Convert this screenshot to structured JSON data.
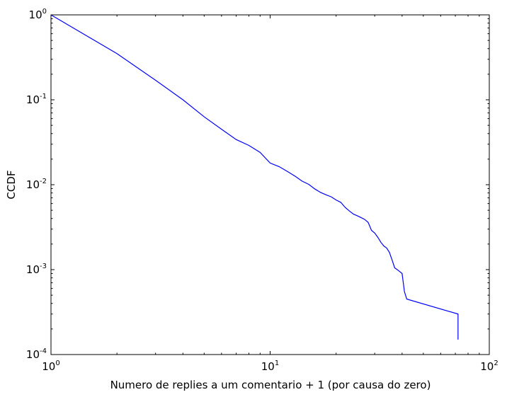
{
  "chart_data": {
    "type": "line",
    "xscale": "log",
    "yscale": "log",
    "xlim": [
      1,
      100
    ],
    "ylim": [
      0.0001,
      1
    ],
    "xlabel": "Numero de replies a um comentario + 1 (por causa do zero)",
    "ylabel": "CCDF",
    "x_ticks": [
      {
        "value": 1,
        "base": "10",
        "exp": "0"
      },
      {
        "value": 10,
        "base": "10",
        "exp": "1"
      },
      {
        "value": 100,
        "base": "10",
        "exp": "2"
      }
    ],
    "y_ticks": [
      {
        "value": 1,
        "base": "10",
        "exp": "0"
      },
      {
        "value": 0.1,
        "base": "10",
        "exp": "-1"
      },
      {
        "value": 0.01,
        "base": "10",
        "exp": "-2"
      },
      {
        "value": 0.001,
        "base": "10",
        "exp": "-3"
      },
      {
        "value": 0.0001,
        "base": "10",
        "exp": "-4"
      }
    ],
    "grid": false,
    "series": [
      {
        "color": "#0000ff",
        "x": [
          1,
          2,
          3,
          4,
          5,
          6,
          7,
          8,
          9,
          10,
          11,
          12,
          13,
          14,
          15,
          16,
          17,
          18,
          19,
          20,
          21,
          22,
          23,
          24,
          25,
          26,
          27,
          28,
          29,
          30,
          31,
          32,
          33,
          34,
          35,
          36,
          37,
          38,
          39,
          40,
          41,
          42,
          72,
          72
        ],
        "y": [
          1.0,
          0.35,
          0.17,
          0.1,
          0.063,
          0.045,
          0.034,
          0.029,
          0.024,
          0.018,
          0.0163,
          0.0143,
          0.0126,
          0.011,
          0.0101,
          0.0089,
          0.0081,
          0.0076,
          0.0072,
          0.0066,
          0.0062,
          0.0054,
          0.0049,
          0.0045,
          0.0043,
          0.0041,
          0.0039,
          0.0036,
          0.0029,
          0.0027,
          0.0024,
          0.0021,
          0.0019,
          0.0018,
          0.0016,
          0.0013,
          0.00105,
          0.001,
          0.00095,
          0.0009,
          0.00055,
          0.00045,
          0.0003,
          0.00015
        ]
      }
    ]
  }
}
